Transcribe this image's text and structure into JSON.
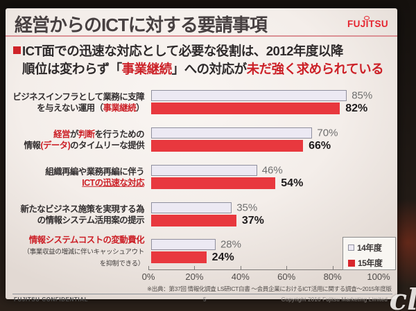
{
  "colors": {
    "accent_red": "#d8262c",
    "bar_light_fill": "#ece9f3",
    "bar_light_border": "#8f8f9e",
    "bar_red_fill": "#e8383e",
    "divider_pink": "#db9094"
  },
  "slide": {
    "title": "経営からのICTに対する要請事項",
    "logo_text": "FUJITSU",
    "statement_lines": [
      [
        {
          "t": "ICT面での迅速な対応として必要な役割は、2012年度以降"
        }
      ],
      [
        {
          "t": "順位は変わらず「"
        },
        {
          "t": "事業継続",
          "red": true
        },
        {
          "t": "」への対応が"
        },
        {
          "t": "未だ強く求められている",
          "red": true
        }
      ]
    ],
    "source_note": "※出典：第37回 情報化調査 LS研ICT白書 ～会員企業におけるICT活用に関する調査～2015年度版",
    "footer": {
      "confidential": "FUJITSU CONFIDENTIAL",
      "page_number": "5",
      "copyright": "Copyright 2016 Fujitsu Marketing Limited"
    }
  },
  "chart_data": {
    "type": "bar",
    "orientation": "horizontal",
    "categories": [
      "ビジネスインフラとして業務に支障を与えない運用（事業継続）",
      "経営が判断を行うための情報(データ)のタイムリーな提供",
      "組織再編や業務再編に伴うICTの迅速な対応",
      "新たなビジネス施策を実現する為の情報システム活用案の提示",
      "情報システムコストの変動費化（事業収益の増減に伴いキャッシュアウトを抑制できる）"
    ],
    "categories_rich": [
      [
        [
          {
            "t": "ビジネスインフラとして業務に支障"
          }
        ],
        [
          {
            "t": "を与えない運用（"
          },
          {
            "t": "事業継続",
            "red": true
          },
          {
            "t": "）"
          }
        ]
      ],
      [
        [
          {
            "t": "経営",
            "red": true
          },
          {
            "t": "が"
          },
          {
            "t": "判断",
            "red": true
          },
          {
            "t": "を行うための"
          }
        ],
        [
          {
            "t": "情報"
          },
          {
            "t": "(データ)",
            "red": true
          },
          {
            "t": "のタイムリーな提供"
          }
        ]
      ],
      [
        [
          {
            "t": "組織再編や業務再編に伴う"
          }
        ],
        [
          {
            "t": "ICTの迅速な対応",
            "red": true,
            "u": true
          }
        ]
      ],
      [
        [
          {
            "t": "新たなビジネス施策を実現する為"
          }
        ],
        [
          {
            "t": "の情報システム活用案の提示"
          }
        ]
      ],
      [
        [
          {
            "t": "情報システムコストの変動費化",
            "red": true
          }
        ],
        [
          {
            "t": "（事業収益の増減に伴いキャッシュアウト",
            "small": true
          }
        ],
        [
          {
            "t": "を抑制できる）",
            "small": true
          }
        ]
      ]
    ],
    "series": [
      {
        "name": "14年度",
        "values": [
          85,
          70,
          46,
          35,
          28
        ]
      },
      {
        "name": "15年度",
        "values": [
          82,
          66,
          54,
          37,
          24
        ]
      }
    ],
    "value_suffix": "%",
    "xlim": [
      0,
      100
    ],
    "x_ticks": [
      "0%",
      "20%",
      "40%",
      "60%",
      "80%",
      "100%"
    ],
    "grid": false,
    "legend_position": "bottom-right"
  },
  "watermark": "cl"
}
